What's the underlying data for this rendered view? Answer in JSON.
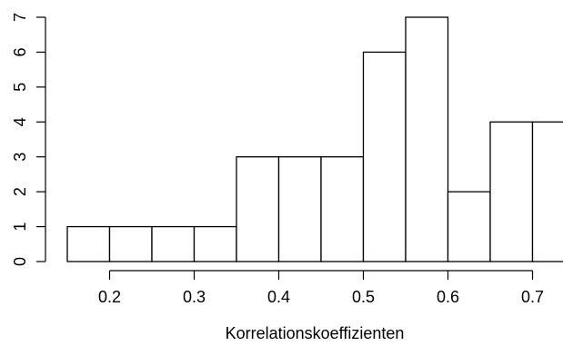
{
  "chart_data": {
    "type": "bar",
    "subtype": "histogram",
    "title": "",
    "xlabel": "Korrelationskoeffizienten",
    "ylabel": "",
    "bins": [
      {
        "start": 0.15,
        "end": 0.2,
        "count": 1
      },
      {
        "start": 0.2,
        "end": 0.25,
        "count": 1
      },
      {
        "start": 0.25,
        "end": 0.3,
        "count": 1
      },
      {
        "start": 0.3,
        "end": 0.35,
        "count": 1
      },
      {
        "start": 0.35,
        "end": 0.4,
        "count": 3
      },
      {
        "start": 0.4,
        "end": 0.45,
        "count": 3
      },
      {
        "start": 0.45,
        "end": 0.5,
        "count": 3
      },
      {
        "start": 0.5,
        "end": 0.55,
        "count": 6
      },
      {
        "start": 0.55,
        "end": 0.6,
        "count": 7
      },
      {
        "start": 0.6,
        "end": 0.65,
        "count": 2
      },
      {
        "start": 0.65,
        "end": 0.7,
        "count": 4
      },
      {
        "start": 0.7,
        "end": 0.75,
        "count": 4
      }
    ],
    "xticks": [
      "0.2",
      "0.3",
      "0.4",
      "0.5",
      "0.6",
      "0.7"
    ],
    "yticks": [
      "0",
      "1",
      "2",
      "3",
      "4",
      "5",
      "6",
      "7"
    ],
    "ylim": [
      0,
      7
    ],
    "grid": false,
    "bar_fill": "#ffffff",
    "bar_stroke": "#000000"
  }
}
